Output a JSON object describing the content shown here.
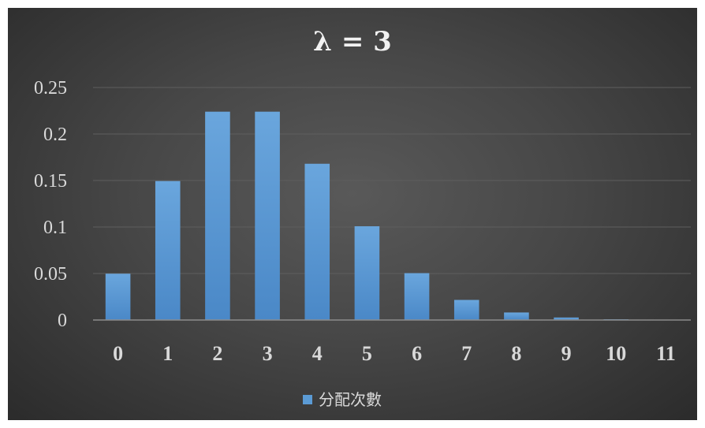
{
  "chart_data": {
    "type": "bar",
    "title": "λ = 3",
    "categories": [
      "0",
      "1",
      "2",
      "3",
      "4",
      "5",
      "6",
      "7",
      "8",
      "9",
      "10",
      "11"
    ],
    "series": [
      {
        "name": "分配次數",
        "values": [
          0.0498,
          0.1494,
          0.224,
          0.224,
          0.168,
          0.1008,
          0.0504,
          0.0216,
          0.0081,
          0.0027,
          0.0008,
          0.0002
        ]
      }
    ],
    "y_ticks": [
      "0",
      "0.05",
      "0.1",
      "0.15",
      "0.2",
      "0.25"
    ],
    "ylim": [
      0,
      0.25
    ],
    "grid": true,
    "legend_position": "bottom",
    "colors": {
      "bar": "#5b9bd5",
      "background": "#404040",
      "text": "#d9d9d9"
    }
  }
}
